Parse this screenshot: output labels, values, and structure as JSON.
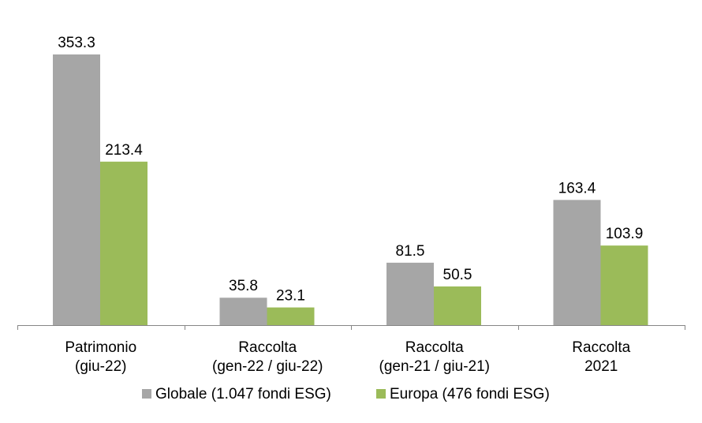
{
  "chart_data": {
    "type": "bar",
    "categories": [
      [
        "Patrimonio",
        "(giu-22)"
      ],
      [
        "Raccolta",
        "(gen-22 / giu-22)"
      ],
      [
        "Raccolta",
        "(gen-21 / giu-21)"
      ],
      [
        "Raccolta",
        "2021"
      ]
    ],
    "series": [
      {
        "name": "Globale (1.047 fondi ESG)",
        "color": "#a6a6a6",
        "values": [
          353.3,
          35.8,
          81.5,
          163.4
        ]
      },
      {
        "name": "Europa (476 fondi ESG)",
        "color": "#9bbb59",
        "values": [
          213.4,
          23.1,
          50.5,
          103.9
        ]
      }
    ],
    "value_labels": [
      [
        "353.3",
        "35.8",
        "81.5",
        "163.4"
      ],
      [
        "213.4",
        "23.1",
        "50.5",
        "103.9"
      ]
    ],
    "ylim": [
      0,
      353.3
    ],
    "grid": false,
    "legend": "bottom"
  }
}
